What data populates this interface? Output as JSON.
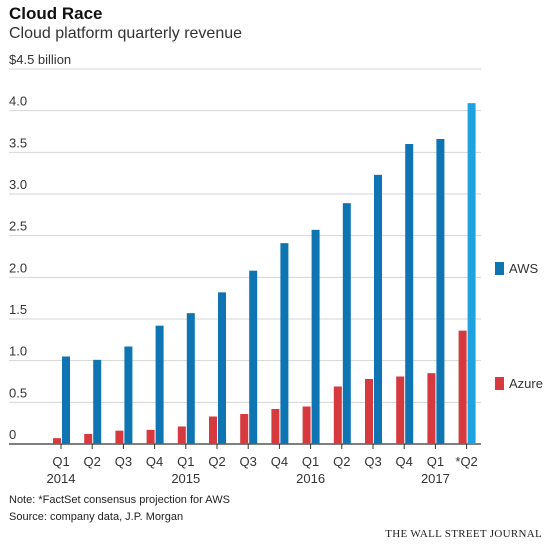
{
  "header": {
    "title": "Cloud Race",
    "subtitle": "Cloud platform quarterly revenue"
  },
  "footer": {
    "note": "Note: *FactSet consensus projection for AWS",
    "source": "Source: company data, J.P. Morgan",
    "credit": "THE WALL STREET JOURNAL"
  },
  "colors": {
    "aws": "#0f75b2",
    "aws_projection": "#1fa3e0",
    "azure": "#d6393e",
    "grid": "#d5d5d5",
    "axis": "#333333"
  },
  "chart_data": {
    "type": "bar",
    "categories": [
      "Q1",
      "Q2",
      "Q3",
      "Q4",
      "Q1",
      "Q2",
      "Q3",
      "Q4",
      "Q1",
      "Q2",
      "Q3",
      "Q4",
      "Q1",
      "*Q2"
    ],
    "year_labels": [
      {
        "label": "2014",
        "index": 0
      },
      {
        "label": "2015",
        "index": 4
      },
      {
        "label": "2016",
        "index": 8
      },
      {
        "label": "2017",
        "index": 12
      }
    ],
    "series": [
      {
        "name": "AWS",
        "values": [
          1.05,
          1.01,
          1.17,
          1.42,
          1.57,
          1.82,
          2.08,
          2.41,
          2.57,
          2.89,
          3.23,
          3.6,
          3.66,
          4.09
        ],
        "projection_index": 13
      },
      {
        "name": "Azure",
        "values": [
          0.07,
          0.12,
          0.16,
          0.17,
          0.21,
          0.33,
          0.36,
          0.42,
          0.45,
          0.69,
          0.78,
          0.81,
          0.85,
          1.36
        ]
      }
    ],
    "ylim": [
      0,
      4.5
    ],
    "yticks": [
      0,
      0.5,
      1.0,
      1.5,
      2.0,
      2.5,
      3.0,
      3.5,
      4.0,
      4.5
    ],
    "ytick_labels": [
      "0",
      "0.5",
      "1.0",
      "1.5",
      "2.0",
      "2.5",
      "3.0",
      "3.5",
      "4.0",
      "$4.5 billion"
    ],
    "grid": true,
    "legend_position": "right"
  }
}
